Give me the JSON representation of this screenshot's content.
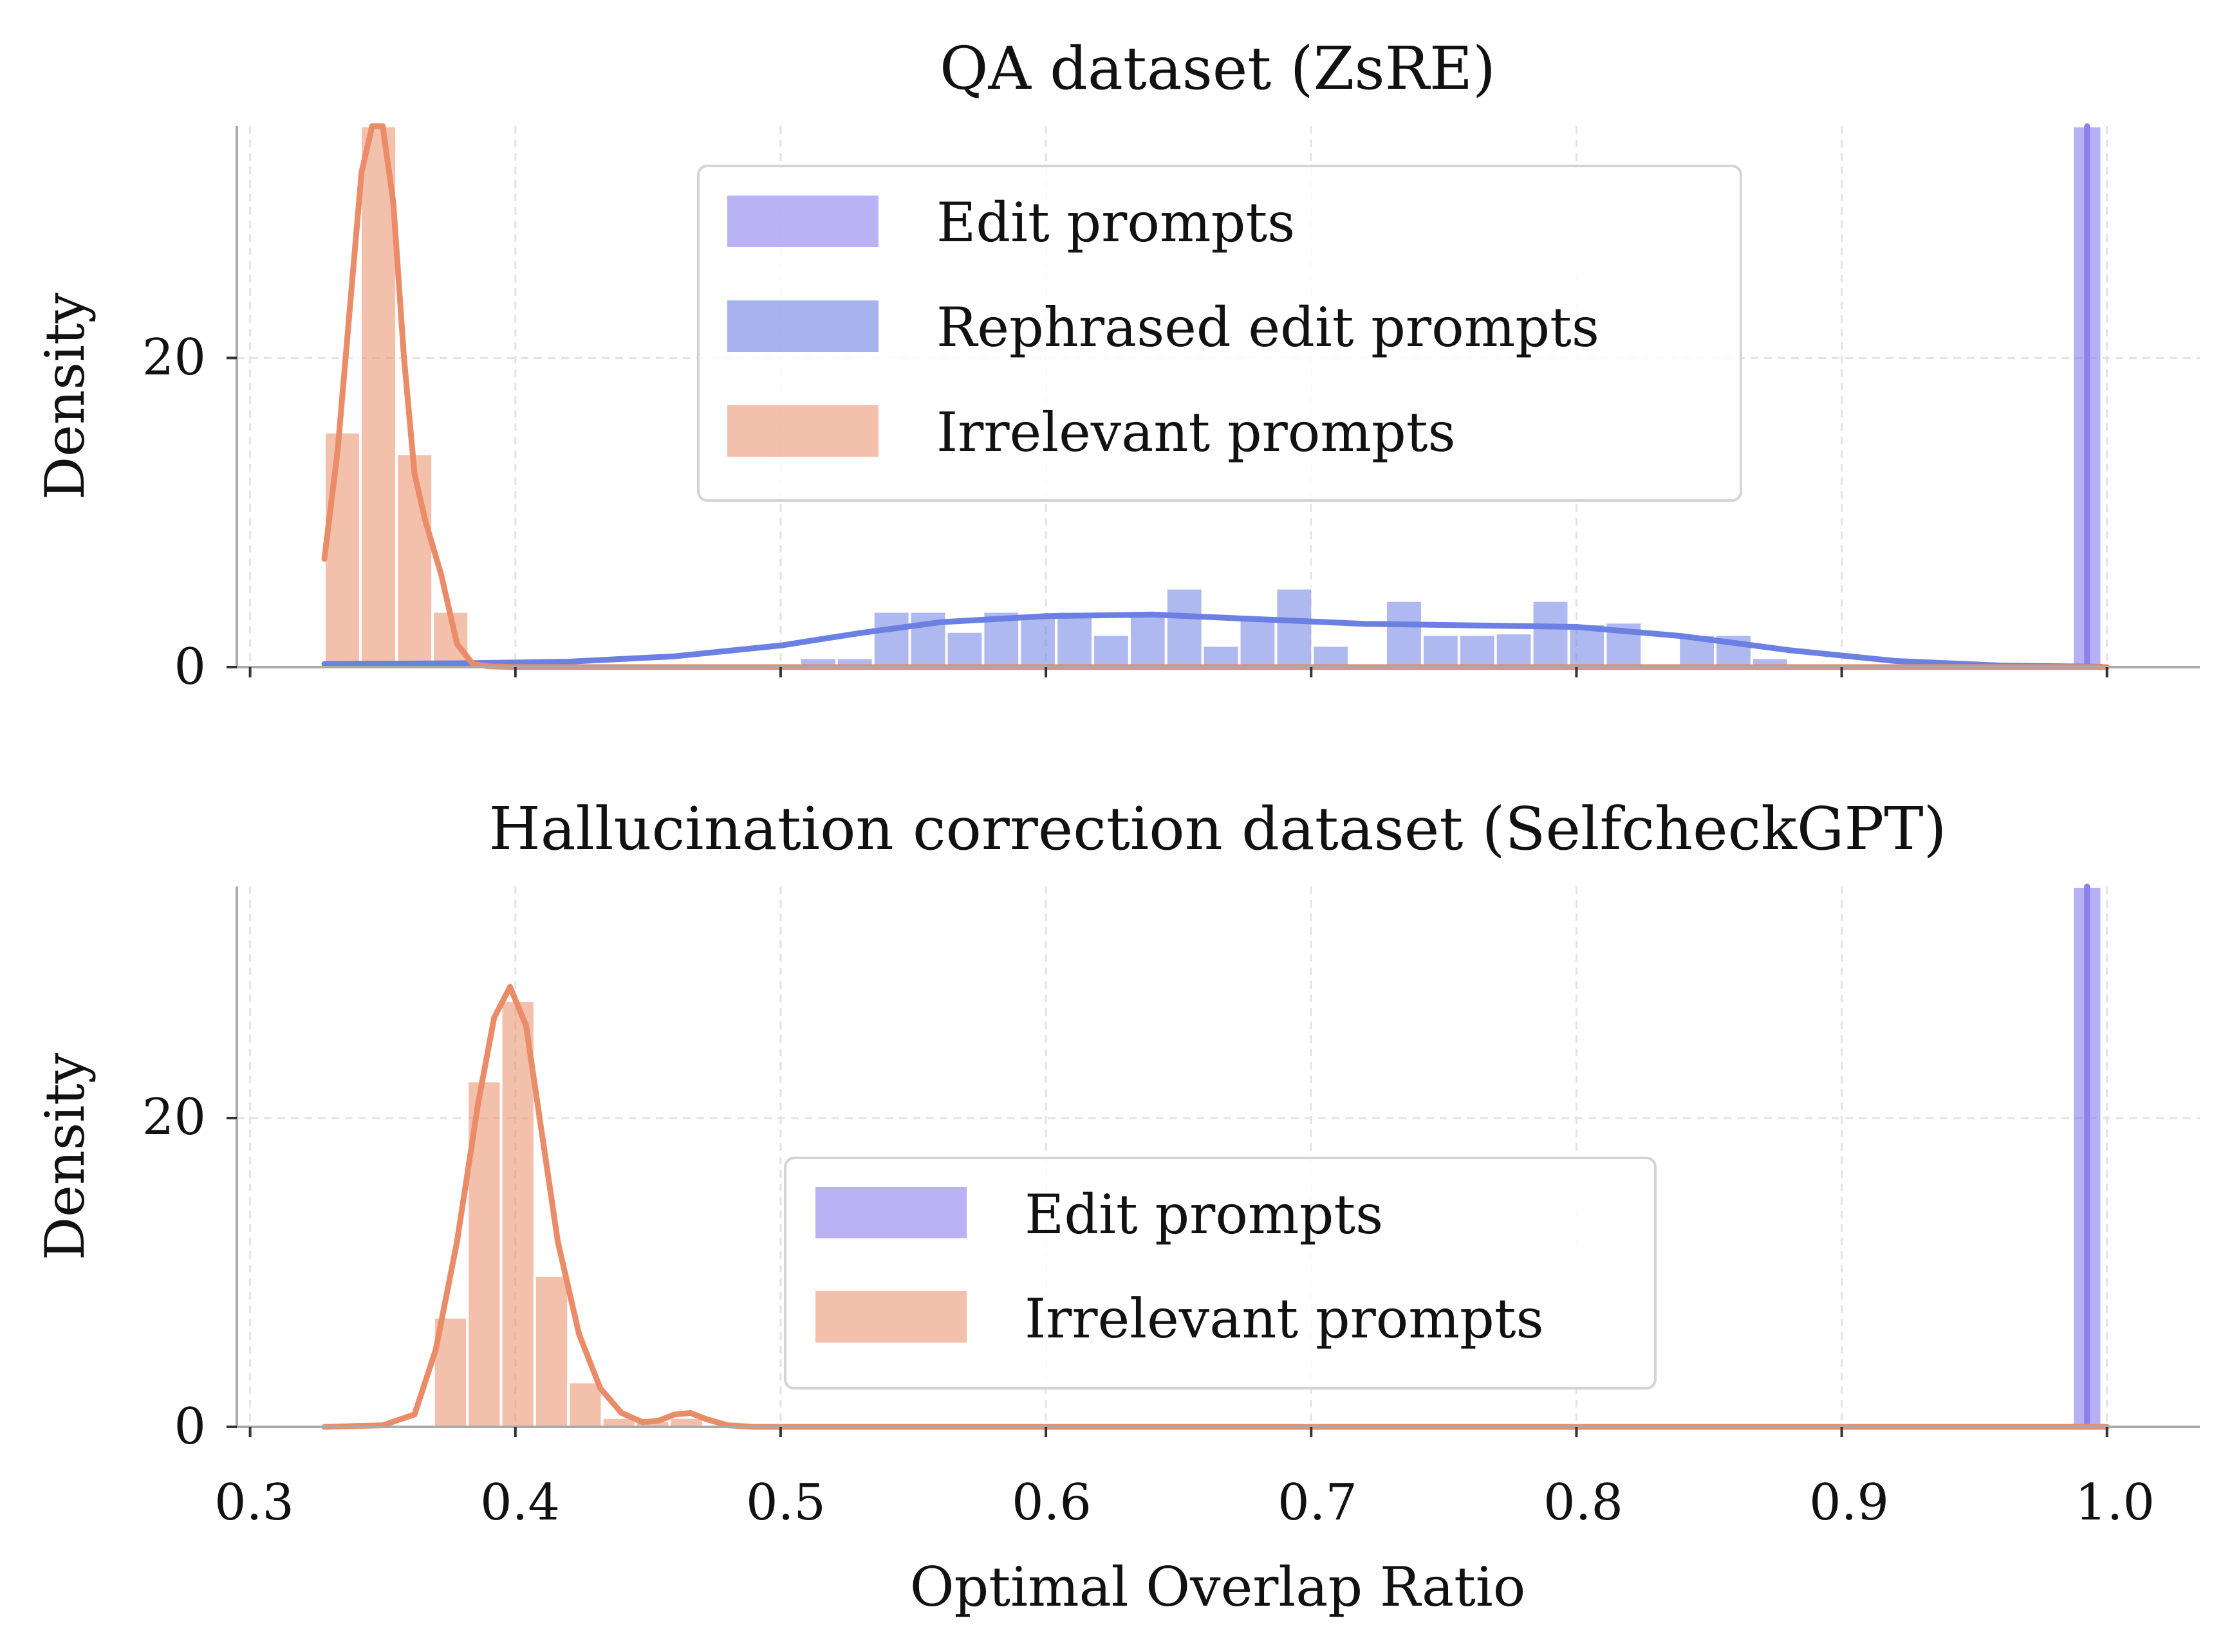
{
  "figure": {
    "xlabel": "Optimal Overlap Ratio"
  },
  "chart_data": [
    {
      "type": "histogram",
      "title": "QA dataset (ZsRE)",
      "xlabel": "",
      "ylabel": "Density",
      "xlim": [
        0.295,
        1.035
      ],
      "ylim": [
        0,
        35
      ],
      "xticks": [
        0.3,
        0.4,
        0.5,
        0.6,
        0.7,
        0.8,
        0.9,
        1.0
      ],
      "xtick_labels": [],
      "yticks": [
        0,
        20
      ],
      "ytick_labels": [
        "0",
        "20"
      ],
      "grid": true,
      "legend_position": "upper-center",
      "series": [
        {
          "name": "Edit prompts",
          "color": "#8b80ee",
          "bar_opacity": 0.62,
          "bins": [
            {
              "x0": 0.987,
              "x1": 0.998,
              "density": 35
            }
          ],
          "kde": {
            "x": [
              0.9925,
              0.9925
            ],
            "y": [
              0,
              35
            ]
          }
        },
        {
          "name": "Rephrased edit prompts",
          "color": "#6b80e2",
          "bar_opacity": 0.55,
          "bins": [
            {
              "x0": 0.5073,
              "x1": 0.5211,
              "density": 0.6
            },
            {
              "x0": 0.5211,
              "x1": 0.5349,
              "density": 0.6
            },
            {
              "x0": 0.5349,
              "x1": 0.5487,
              "density": 3.6
            },
            {
              "x0": 0.5487,
              "x1": 0.5625,
              "density": 3.6
            },
            {
              "x0": 0.5625,
              "x1": 0.5763,
              "density": 2.3
            },
            {
              "x0": 0.5763,
              "x1": 0.5901,
              "density": 3.6
            },
            {
              "x0": 0.5901,
              "x1": 0.6039,
              "density": 3.3
            },
            {
              "x0": 0.6039,
              "x1": 0.6177,
              "density": 3.6
            },
            {
              "x0": 0.6177,
              "x1": 0.6315,
              "density": 2.1
            },
            {
              "x0": 0.6315,
              "x1": 0.6453,
              "density": 3.5
            },
            {
              "x0": 0.6453,
              "x1": 0.6591,
              "density": 5.1
            },
            {
              "x0": 0.6591,
              "x1": 0.6729,
              "density": 1.4
            },
            {
              "x0": 0.6729,
              "x1": 0.6867,
              "density": 3.2
            },
            {
              "x0": 0.6867,
              "x1": 0.7005,
              "density": 5.1
            },
            {
              "x0": 0.7005,
              "x1": 0.7143,
              "density": 1.4
            },
            {
              "x0": 0.7143,
              "x1": 0.7281,
              "density": 0
            },
            {
              "x0": 0.7281,
              "x1": 0.7419,
              "density": 4.3
            },
            {
              "x0": 0.7419,
              "x1": 0.7557,
              "density": 2.1
            },
            {
              "x0": 0.7557,
              "x1": 0.7695,
              "density": 2.1
            },
            {
              "x0": 0.7695,
              "x1": 0.7833,
              "density": 2.2
            },
            {
              "x0": 0.7833,
              "x1": 0.7971,
              "density": 4.3
            },
            {
              "x0": 0.7971,
              "x1": 0.8109,
              "density": 2.8
            },
            {
              "x0": 0.8109,
              "x1": 0.8247,
              "density": 2.9
            },
            {
              "x0": 0.8247,
              "x1": 0.8385,
              "density": 0
            },
            {
              "x0": 0.8385,
              "x1": 0.8523,
              "density": 2.1
            },
            {
              "x0": 0.8523,
              "x1": 0.8661,
              "density": 2.1
            },
            {
              "x0": 0.8661,
              "x1": 0.8799,
              "density": 0.6
            }
          ],
          "kde": {
            "x": [
              0.328,
              0.38,
              0.42,
              0.46,
              0.5,
              0.53,
              0.56,
              0.6,
              0.64,
              0.68,
              0.72,
              0.76,
              0.8,
              0.84,
              0.88,
              0.92,
              0.96,
              0.998
            ],
            "y": [
              0.2,
              0.25,
              0.35,
              0.7,
              1.4,
              2.2,
              2.9,
              3.3,
              3.4,
              3.1,
              2.8,
              2.7,
              2.6,
              2.0,
              1.1,
              0.4,
              0.1,
              0.02
            ]
          }
        },
        {
          "name": "Irrelevant prompts",
          "color": "#ea8c68",
          "bar_opacity": 0.55,
          "bins": [
            {
              "x0": 0.328,
              "x1": 0.3416,
              "density": 15.2
            },
            {
              "x0": 0.3416,
              "x1": 0.3552,
              "density": 35
            },
            {
              "x0": 0.3552,
              "x1": 0.3688,
              "density": 13.8
            },
            {
              "x0": 0.3688,
              "x1": 0.3824,
              "density": 3.6
            }
          ],
          "kde": {
            "x": [
              0.328,
              0.333,
              0.338,
              0.342,
              0.346,
              0.35,
              0.354,
              0.358,
              0.362,
              0.366,
              0.372,
              0.378,
              0.384,
              0.39,
              0.4,
              1.0
            ],
            "y": [
              7.0,
              14.0,
              24.0,
              32.0,
              35.0,
              35.0,
              30.0,
              20.0,
              12.5,
              9.5,
              6.0,
              1.5,
              0.2,
              0.05,
              0.0,
              0.0
            ]
          }
        }
      ]
    },
    {
      "type": "histogram",
      "title": "Hallucination correction dataset (SelfcheckGPT)",
      "xlabel": "Optimal Overlap Ratio",
      "ylabel": "Density",
      "xlim": [
        0.295,
        1.035
      ],
      "ylim": [
        0,
        35
      ],
      "xticks": [
        0.3,
        0.4,
        0.5,
        0.6,
        0.7,
        0.8,
        0.9,
        1.0
      ],
      "xtick_labels": [
        "0.3",
        "0.4",
        "0.5",
        "0.6",
        "0.7",
        "0.8",
        "0.9",
        "1.0"
      ],
      "yticks": [
        0,
        20
      ],
      "ytick_labels": [
        "0",
        "20"
      ],
      "grid": true,
      "legend_position": "lower-center",
      "series": [
        {
          "name": "Edit prompts",
          "color": "#8b80ee",
          "bar_opacity": 0.62,
          "bins": [
            {
              "x0": 0.987,
              "x1": 0.998,
              "density": 35
            }
          ],
          "kde": {
            "x": [
              0.9925,
              0.9925
            ],
            "y": [
              0,
              35
            ]
          }
        },
        {
          "name": "Irrelevant prompts",
          "color": "#ea8c68",
          "bar_opacity": 0.55,
          "bins": [
            {
              "x0": 0.3692,
              "x1": 0.3819,
              "density": 7.1
            },
            {
              "x0": 0.3819,
              "x1": 0.3946,
              "density": 22.4
            },
            {
              "x0": 0.3946,
              "x1": 0.4073,
              "density": 27.6
            },
            {
              "x0": 0.4073,
              "x1": 0.42,
              "density": 9.8
            },
            {
              "x0": 0.42,
              "x1": 0.4327,
              "density": 2.9
            },
            {
              "x0": 0.4327,
              "x1": 0.4454,
              "density": 0.6
            },
            {
              "x0": 0.4454,
              "x1": 0.4581,
              "density": 0.4
            },
            {
              "x0": 0.4581,
              "x1": 0.4708,
              "density": 0.6
            }
          ],
          "kde": {
            "x": [
              0.328,
              0.35,
              0.362,
              0.37,
              0.378,
              0.386,
              0.392,
              0.398,
              0.404,
              0.41,
              0.416,
              0.424,
              0.432,
              0.44,
              0.448,
              0.454,
              0.46,
              0.466,
              0.472,
              0.48,
              0.49,
              1.0
            ],
            "y": [
              0.0,
              0.1,
              0.8,
              5.0,
              12.0,
              21.0,
              26.5,
              28.5,
              26.0,
              19.0,
              12.0,
              6.0,
              2.5,
              0.9,
              0.3,
              0.4,
              0.8,
              0.9,
              0.5,
              0.1,
              0.0,
              0.0
            ]
          }
        }
      ]
    }
  ]
}
